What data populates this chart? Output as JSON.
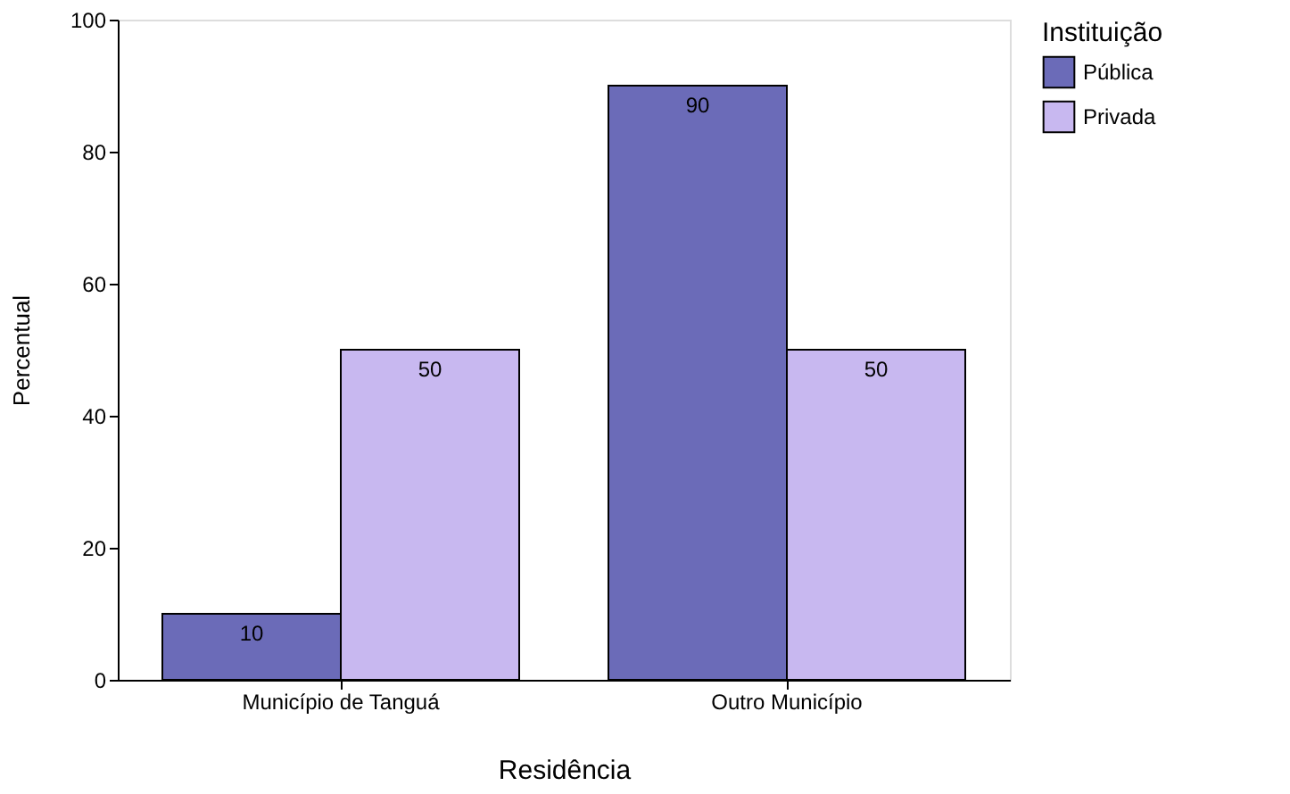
{
  "chart_data": {
    "type": "bar",
    "xlabel": "Residência",
    "ylabel": "Percentual",
    "legend_title": "Instituição",
    "categories": [
      "Município de Tanguá",
      "Outro Município"
    ],
    "series": [
      {
        "name": "Pública",
        "color": "#6b6bb8",
        "values": [
          10,
          90
        ]
      },
      {
        "name": "Privada",
        "color": "#c8b8f0",
        "values": [
          50,
          50
        ]
      }
    ],
    "ylim": [
      0,
      100
    ],
    "yticks": [
      0,
      20,
      40,
      60,
      80,
      100
    ],
    "grid": false,
    "legend": "right",
    "data_labels": true
  }
}
